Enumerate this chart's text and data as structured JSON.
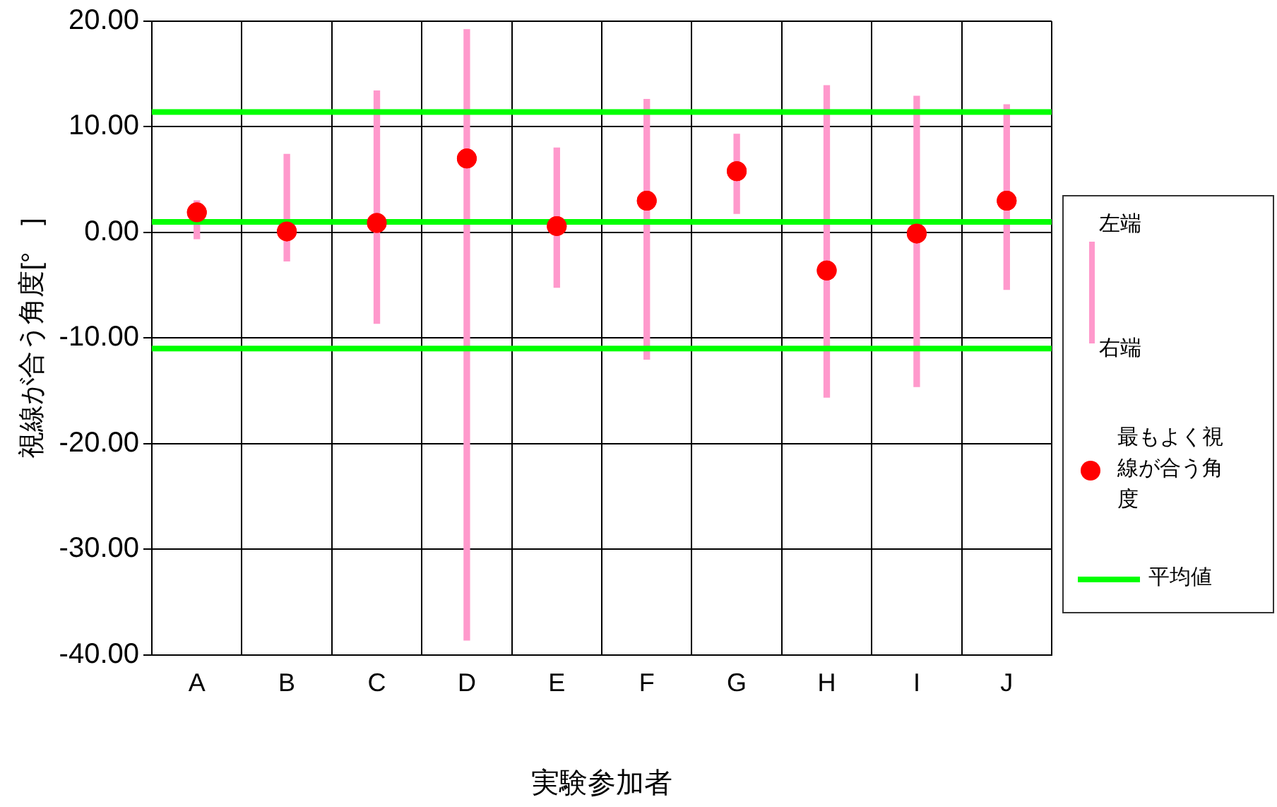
{
  "chart_data": {
    "type": "scatter",
    "xlabel": "実験参加者",
    "ylabel": "視線が合う角度[°　]",
    "categories": [
      "A",
      "B",
      "C",
      "D",
      "E",
      "F",
      "G",
      "H",
      "I",
      "J"
    ],
    "series": [
      {
        "type": "bar",
        "color": "#ff99cc",
        "base": [
          -0.6,
          -2.7,
          -8.6,
          -38.6,
          -5.2,
          -12.0,
          1.8,
          -15.6,
          -14.6,
          -5.4
        ],
        "values": [
          3.6,
          10.1,
          22.0,
          57.8,
          13.2,
          24.6,
          7.5,
          29.5,
          27.5,
          17.5
        ]
      },
      {
        "name": "最もよく視線が合う角度",
        "color": "#ff0000",
        "marker": "circle",
        "values": [
          1.9,
          0.1,
          0.9,
          7.0,
          0.6,
          3.0,
          5.8,
          -3.6,
          -0.1,
          3.0
        ]
      }
    ],
    "ylim": [
      -40,
      20
    ],
    "yticks": [
      {
        "value": -40,
        "label": "-40.00"
      },
      {
        "value": -30,
        "label": "-30.00"
      },
      {
        "value": -20,
        "label": "-20.00"
      },
      {
        "value": -10,
        "label": "-10.00"
      },
      {
        "value": 0,
        "label": "0.00"
      },
      {
        "value": 10,
        "label": "10.00"
      },
      {
        "value": 20,
        "label": "20.00"
      }
    ],
    "ref_lines": [
      {
        "axis": "y",
        "value": 11.4,
        "color": "#00ff00"
      },
      {
        "axis": "y",
        "value": 1.0,
        "color": "#00ff00",
        "label": "平均値"
      },
      {
        "axis": "y",
        "value": -11.0,
        "color": "#00ff00"
      }
    ],
    "annotations": [
      "左端",
      "右端"
    ],
    "grid": true,
    "legend": "right"
  }
}
